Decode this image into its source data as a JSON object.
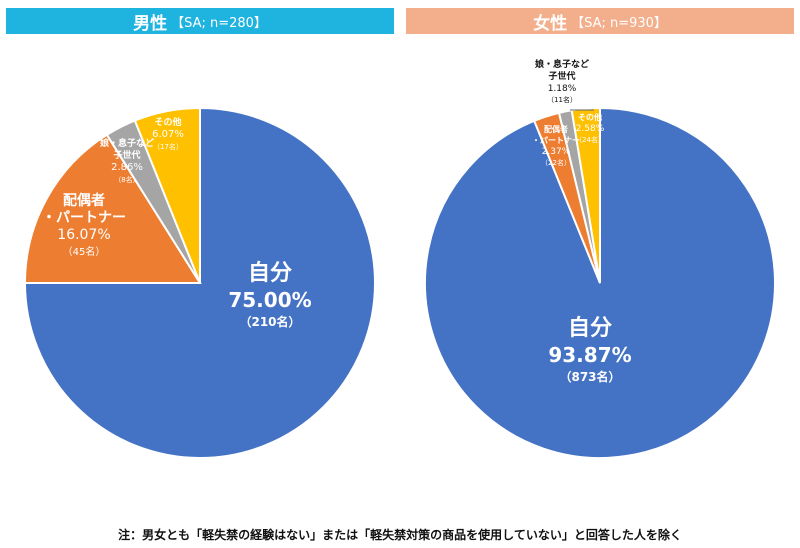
{
  "note": "注：男女とも「軽失禁の経験はない」または「軽失禁対策の商品を使用していない」と回答した人を除く",
  "colors": {
    "jibun": "#4472c4",
    "haigusha": "#ed7d31",
    "kodomo": "#a5a5a5",
    "sonota": "#ffc000",
    "male_header": "#1fb3e0",
    "female_header": "#f3ae8c"
  },
  "chart_data": [
    {
      "type": "pie",
      "title": "男性",
      "subtitle": "【SA; n=280】",
      "slices": [
        {
          "key": "jibun",
          "label": "自分",
          "percent_text": "75.00%",
          "value": 75.0,
          "count_text": "（210名）"
        },
        {
          "key": "haigusha",
          "label": "配偶者\n・パートナー",
          "percent_text": "16.07%",
          "value": 16.07,
          "count_text": "（45名）"
        },
        {
          "key": "kodomo",
          "label": "娘・息子など\n子世代",
          "percent_text": "2.86%",
          "value": 2.86,
          "count_text": "（8名）"
        },
        {
          "key": "sonota",
          "label": "その他",
          "percent_text": "6.07%",
          "value": 6.07,
          "count_text": "（17名）"
        }
      ]
    },
    {
      "type": "pie",
      "title": "女性",
      "subtitle": "【SA; n=930】",
      "slices": [
        {
          "key": "jibun",
          "label": "自分",
          "percent_text": "93.87%",
          "value": 93.87,
          "count_text": "（873名）"
        },
        {
          "key": "haigusha",
          "label": "配偶者\n・パートナー",
          "percent_text": "2.37%",
          "value": 2.37,
          "count_text": "（22名）"
        },
        {
          "key": "kodomo",
          "label": "娘・息子など\n子世代",
          "percent_text": "1.18%",
          "value": 1.18,
          "count_text": "（11名）"
        },
        {
          "key": "sonota",
          "label": "その他",
          "percent_text": "2.58%",
          "value": 2.58,
          "count_text": "（24名）"
        }
      ]
    }
  ]
}
